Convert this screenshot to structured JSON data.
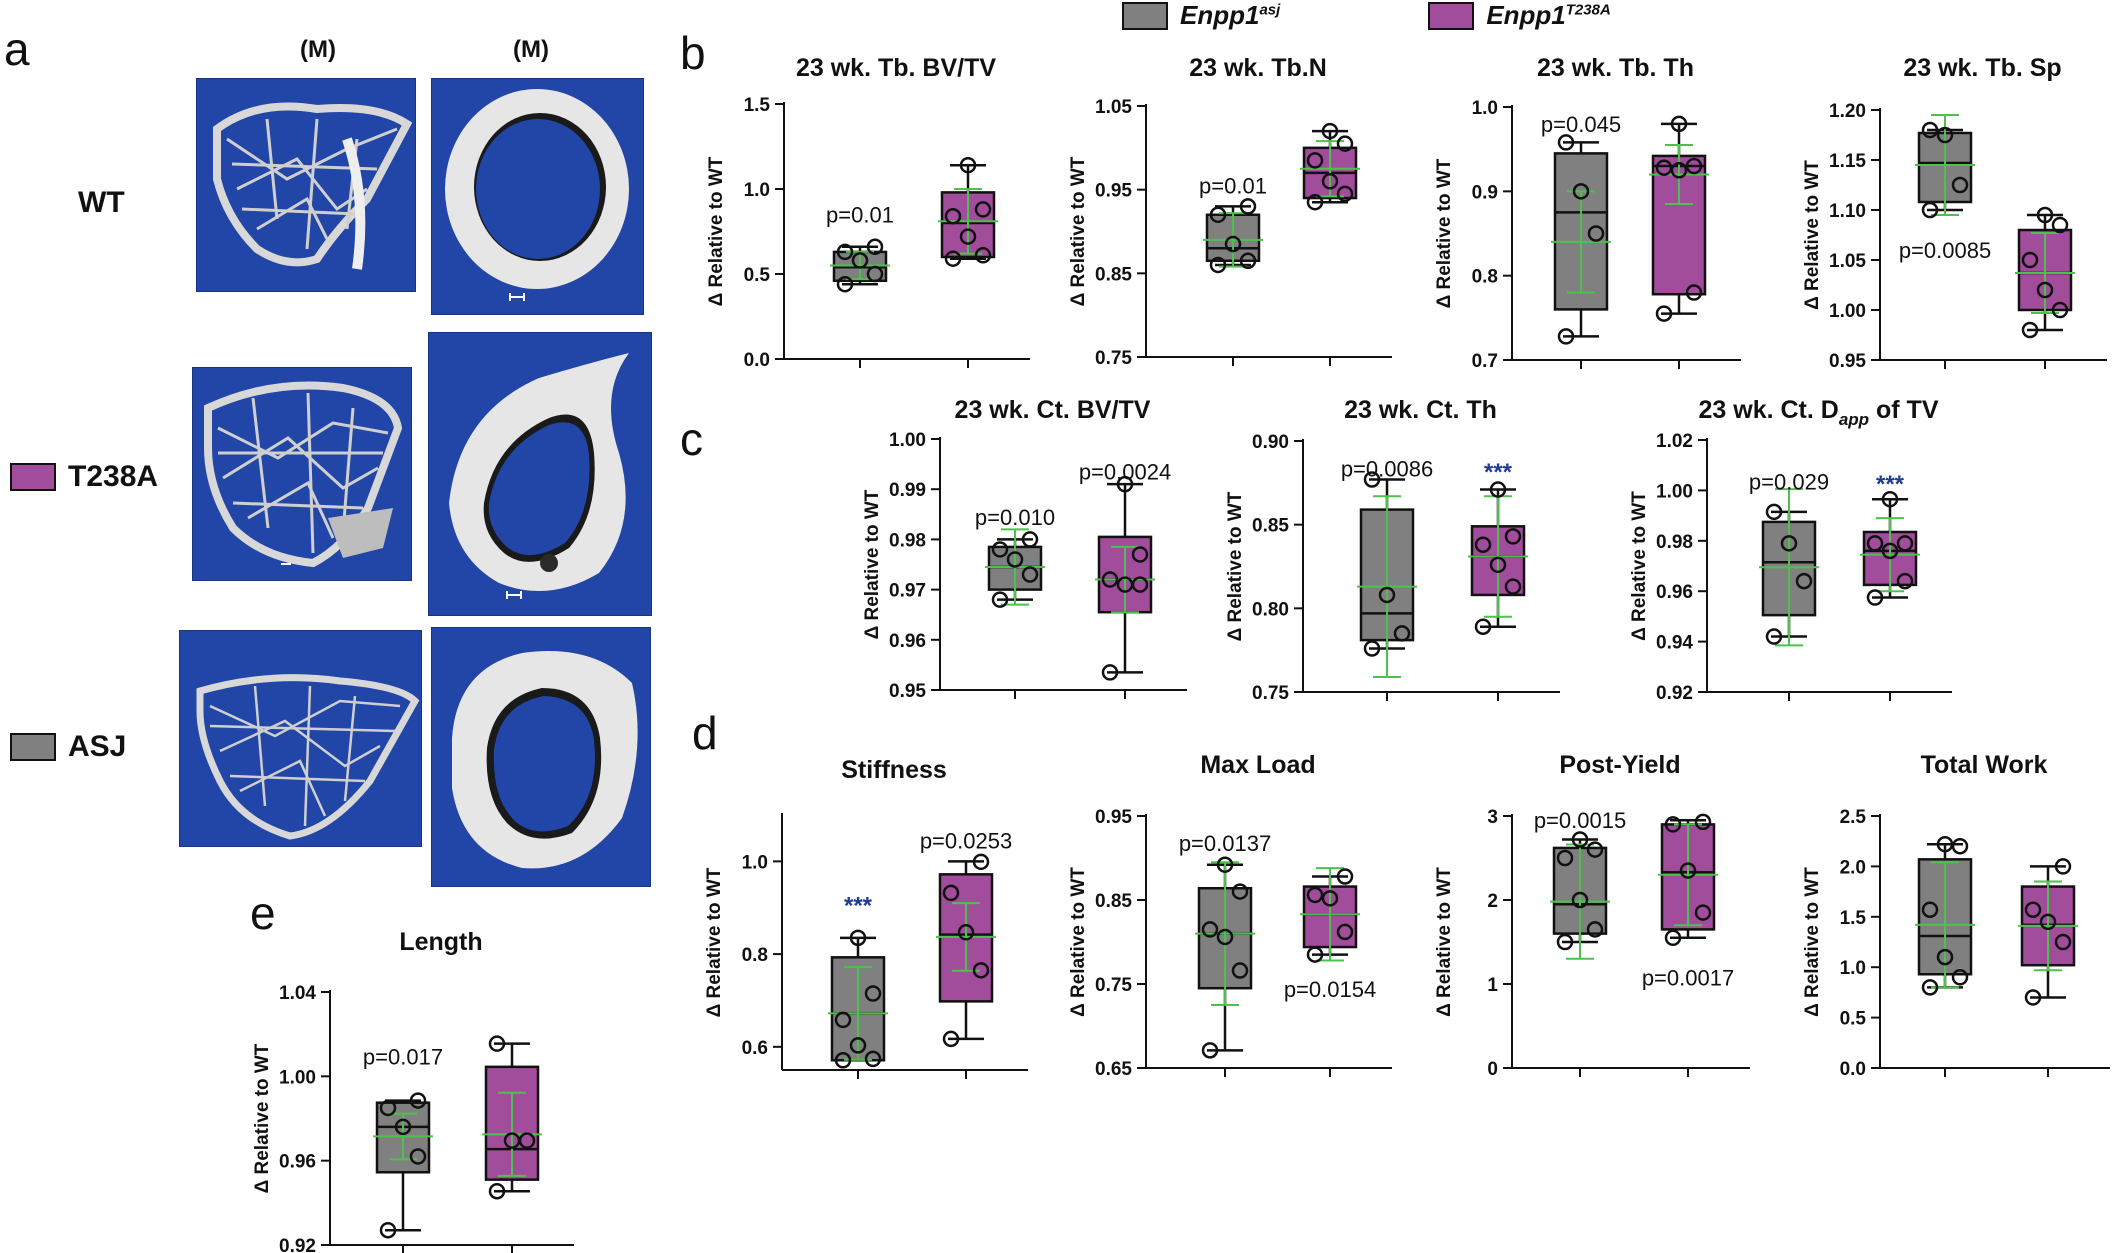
{
  "figure": {
    "panel_labels": [
      "a",
      "b",
      "c",
      "d",
      "e"
    ],
    "legend": [
      {
        "label": "Enpp1",
        "superscript": "asj",
        "color": "#808080"
      },
      {
        "label": "Enpp1",
        "superscript": "T238A",
        "color": "#a24c9c"
      }
    ],
    "panel_a": {
      "column_headers": [
        "(M)",
        "(M)"
      ],
      "rows": [
        {
          "label": "WT",
          "swatch": null
        },
        {
          "label": "T238A",
          "swatch": "#a24c9c"
        },
        {
          "label": "ASJ",
          "swatch": "#808080"
        }
      ],
      "background_color": "#2246a8"
    },
    "colors": {
      "asj": "#808080",
      "t238a": "#a24c9c",
      "mean_sd": "#4cc24c",
      "significance": "#1f3c8f"
    }
  },
  "chart_data": [
    {
      "id": "tb_bvtv",
      "type": "box",
      "title": "23 wk. Tb. BV/TV",
      "ylabel": "Δ Relative to WT",
      "ylim": [
        0,
        1.5
      ],
      "yticks": [
        "0.0",
        "0.5",
        "1.0",
        "1.5"
      ],
      "yticks_values": [
        0,
        0.5,
        1.0,
        1.5
      ],
      "series": [
        {
          "name": "Enpp1 asj",
          "q1": 0.46,
          "median": 0.54,
          "q3": 0.63,
          "min": 0.44,
          "max": 0.66,
          "mean": 0.55,
          "sd": 0.08,
          "points": [
            0.44,
            0.5,
            0.58,
            0.63,
            0.66
          ]
        },
        {
          "name": "Enpp1 T238A",
          "q1": 0.6,
          "median": 0.8,
          "q3": 0.98,
          "min": 0.59,
          "max": 1.14,
          "mean": 0.81,
          "sd": 0.19,
          "points": [
            0.59,
            0.61,
            0.72,
            0.84,
            0.88,
            1.14
          ]
        }
      ],
      "annotations": [
        {
          "text": "p=0.01",
          "x": 0,
          "y": 0.85
        }
      ]
    },
    {
      "id": "tb_n",
      "type": "box",
      "title": "23 wk. Tb.N",
      "ylabel": "Δ Relative to WT",
      "ylim": [
        0.75,
        1.05
      ],
      "yticks": [
        "0.75",
        "0.85",
        "0.95",
        "1.05"
      ],
      "yticks_values": [
        0.75,
        0.85,
        0.95,
        1.05
      ],
      "series": [
        {
          "name": "Enpp1 asj",
          "q1": 0.865,
          "median": 0.88,
          "q3": 0.92,
          "min": 0.86,
          "max": 0.93,
          "mean": 0.89,
          "sd": 0.032,
          "points": [
            0.86,
            0.865,
            0.885,
            0.92,
            0.93
          ]
        },
        {
          "name": "Enpp1 T238A",
          "q1": 0.94,
          "median": 0.97,
          "q3": 1.0,
          "min": 0.935,
          "max": 1.02,
          "mean": 0.975,
          "sd": 0.033,
          "points": [
            0.935,
            0.945,
            0.96,
            0.985,
            1.005,
            1.02
          ]
        }
      ],
      "annotations": [
        {
          "text": "p=0.01",
          "x": 0,
          "y": 0.955
        }
      ]
    },
    {
      "id": "tb_th",
      "type": "box",
      "title": "23 wk. Tb. Th",
      "ylabel": "Δ Relative to WT",
      "ylim": [
        0.7,
        1.0
      ],
      "yticks": [
        "0.7",
        "0.8",
        "0.9",
        "1.0"
      ],
      "yticks_values": [
        0.7,
        0.8,
        0.9,
        1.0
      ],
      "series": [
        {
          "name": "Enpp1 asj",
          "q1": 0.76,
          "median": 0.875,
          "q3": 0.945,
          "min": 0.728,
          "max": 0.958,
          "mean": 0.84,
          "sd": 0.06,
          "points": [
            0.728,
            0.85,
            0.9,
            0.958
          ]
        },
        {
          "name": "Enpp1 T238A",
          "q1": 0.778,
          "median": 0.93,
          "q3": 0.942,
          "min": 0.755,
          "max": 0.98,
          "mean": 0.92,
          "sd": 0.035,
          "points": [
            0.755,
            0.78,
            0.925,
            0.928,
            0.93,
            0.98
          ]
        }
      ],
      "annotations": [
        {
          "text": "p=0.045",
          "x": 0,
          "y": 0.98
        }
      ]
    },
    {
      "id": "tb_sp",
      "type": "box",
      "title": "23 wk. Tb. Sp",
      "ylabel": "Δ Relative to WT",
      "ylim": [
        0.95,
        1.2
      ],
      "yticks": [
        "0.95",
        "1.00",
        "1.05",
        "1.10",
        "1.15",
        "1.20"
      ],
      "yticks_values": [
        0.95,
        1.0,
        1.05,
        1.1,
        1.15,
        1.2
      ],
      "series": [
        {
          "name": "Enpp1 asj",
          "q1": 1.108,
          "median": 1.147,
          "q3": 1.177,
          "min": 1.1,
          "max": 1.18,
          "mean": 1.145,
          "sd": 0.05,
          "points": [
            1.1,
            1.125,
            1.175,
            1.18
          ]
        },
        {
          "name": "Enpp1 T238A",
          "q1": 1.0,
          "median": 1.037,
          "q3": 1.08,
          "min": 0.98,
          "max": 1.095,
          "mean": 1.037,
          "sd": 0.04,
          "points": [
            0.98,
            1.0,
            1.02,
            1.05,
            1.085,
            1.095
          ]
        }
      ],
      "annotations": [
        {
          "text": "p=0.0085",
          "x": 0,
          "y": 1.06
        }
      ]
    },
    {
      "id": "ct_bvtv",
      "type": "box",
      "title": "23 wk. Ct. BV/TV",
      "ylabel": "Δ Relative to WT",
      "ylim": [
        0.95,
        1.0
      ],
      "yticks": [
        "0.95",
        "0.96",
        "0.97",
        "0.98",
        "0.99",
        "1.00"
      ],
      "yticks_values": [
        0.95,
        0.96,
        0.97,
        0.98,
        0.99,
        1.0
      ],
      "series": [
        {
          "name": "Enpp1 asj",
          "q1": 0.97,
          "median": 0.9745,
          "q3": 0.9785,
          "min": 0.968,
          "max": 0.98,
          "mean": 0.9745,
          "sd": 0.0075,
          "points": [
            0.968,
            0.973,
            0.976,
            0.978,
            0.98
          ]
        },
        {
          "name": "Enpp1 T238A",
          "q1": 0.9655,
          "median": 0.972,
          "q3": 0.9805,
          "min": 0.9535,
          "max": 0.991,
          "mean": 0.972,
          "sd": 0.0065,
          "points": [
            0.9535,
            0.971,
            0.971,
            0.972,
            0.977,
            0.991
          ]
        }
      ],
      "annotations": [
        {
          "text": "p=0.010",
          "x": 0,
          "y": 0.9845
        },
        {
          "text": "p=0.0024",
          "x": 1,
          "y": 0.9935
        }
      ]
    },
    {
      "id": "ct_th",
      "type": "box",
      "title": "23 wk. Ct. Th",
      "ylabel": "Δ Relative to WT",
      "ylim": [
        0.75,
        0.9
      ],
      "yticks": [
        "0.75",
        "0.80",
        "0.85",
        "0.90"
      ],
      "yticks_values": [
        0.75,
        0.8,
        0.85,
        0.9
      ],
      "series": [
        {
          "name": "Enpp1 asj",
          "q1": 0.781,
          "median": 0.797,
          "q3": 0.859,
          "min": 0.776,
          "max": 0.877,
          "mean": 0.813,
          "sd": 0.054,
          "points": [
            0.776,
            0.785,
            0.808,
            0.877
          ]
        },
        {
          "name": "Enpp1 T238A",
          "q1": 0.808,
          "median": 0.831,
          "q3": 0.849,
          "min": 0.789,
          "max": 0.871,
          "mean": 0.831,
          "sd": 0.036,
          "points": [
            0.789,
            0.813,
            0.826,
            0.838,
            0.843,
            0.871
          ]
        }
      ],
      "annotations": [
        {
          "text": "p=0.0086",
          "x": 0,
          "y": 0.8835
        },
        {
          "text": "***",
          "x": 1,
          "y": 0.8815,
          "color": "#1f3c8f"
        }
      ]
    },
    {
      "id": "ct_dapp",
      "type": "box",
      "title": "23 wk. Ct. D",
      "title_sub": "app",
      "title_suffix": " of TV",
      "ylabel": "Δ Relative to WT",
      "ylim": [
        0.92,
        1.02
      ],
      "yticks": [
        "0.92",
        "0.94",
        "0.96",
        "0.98",
        "1.00",
        "1.02"
      ],
      "yticks_values": [
        0.92,
        0.94,
        0.96,
        0.98,
        1.0,
        1.02
      ],
      "series": [
        {
          "name": "Enpp1 asj",
          "q1": 0.9505,
          "median": 0.9715,
          "q3": 0.9875,
          "min": 0.942,
          "max": 0.9915,
          "mean": 0.9695,
          "sd": 0.031,
          "points": [
            0.942,
            0.964,
            0.979,
            0.9915
          ]
        },
        {
          "name": "Enpp1 T238A",
          "q1": 0.9625,
          "median": 0.976,
          "q3": 0.9835,
          "min": 0.9575,
          "max": 0.9965,
          "mean": 0.9745,
          "sd": 0.0145,
          "points": [
            0.9575,
            0.964,
            0.976,
            0.979,
            0.979,
            0.9965
          ]
        }
      ],
      "annotations": [
        {
          "text": "p=0.029",
          "x": 0,
          "y": 1.0035
        },
        {
          "text": "***",
          "x": 1,
          "y": 1.0025,
          "color": "#1f3c8f"
        }
      ]
    },
    {
      "id": "stiffness",
      "type": "box",
      "title": "Stiffness",
      "ylabel": "Δ Relative to WT",
      "ylim": [
        0.55,
        1.1
      ],
      "yticks": [
        "0.6",
        "0.8",
        "1.0"
      ],
      "yticks_values": [
        0.6,
        0.8,
        1.0
      ],
      "series": [
        {
          "name": "Enpp1 asj",
          "q1": 0.571,
          "median": 0.672,
          "q3": 0.793,
          "min": 0.571,
          "max": 0.835,
          "mean": 0.672,
          "sd": 0.1,
          "points": [
            0.571,
            0.574,
            0.603,
            0.658,
            0.715,
            0.835
          ]
        },
        {
          "name": "Enpp1 T238A",
          "q1": 0.698,
          "median": 0.842,
          "q3": 0.972,
          "min": 0.617,
          "max": 1.0,
          "mean": 0.837,
          "sd": 0.073,
          "points": [
            0.617,
            0.765,
            0.847,
            0.932,
            0.999
          ]
        }
      ],
      "annotations": [
        {
          "text": "***",
          "x": 0,
          "y": 0.905,
          "color": "#1f3c8f"
        },
        {
          "text": "p=0.0253",
          "x": 1,
          "y": 1.045
        }
      ]
    },
    {
      "id": "max_load",
      "type": "box",
      "title": "Max Load",
      "ylabel": "Δ Relative to WT",
      "ylim": [
        0.65,
        0.95
      ],
      "yticks": [
        "0.65",
        "0.75",
        "0.85",
        "0.95"
      ],
      "yticks_values": [
        0.65,
        0.75,
        0.85,
        0.95
      ],
      "series": [
        {
          "name": "Enpp1 asj",
          "q1": 0.745,
          "median": 0.81,
          "q3": 0.864,
          "min": 0.671,
          "max": 0.892,
          "mean": 0.81,
          "sd": 0.085,
          "points": [
            0.671,
            0.766,
            0.806,
            0.815,
            0.86,
            0.892
          ]
        },
        {
          "name": "Enpp1 T238A",
          "q1": 0.794,
          "median": 0.833,
          "q3": 0.866,
          "min": 0.785,
          "max": 0.878,
          "mean": 0.833,
          "sd": 0.055,
          "points": [
            0.785,
            0.812,
            0.852,
            0.856,
            0.878
          ]
        }
      ],
      "annotations": [
        {
          "text": "p=0.0137",
          "x": 0,
          "y": 0.918
        },
        {
          "text": "p=0.0154",
          "x": 1,
          "y": 0.744
        }
      ]
    },
    {
      "id": "post_yield",
      "type": "box",
      "title": "Post-Yield",
      "ylabel": "Δ Relative to WT",
      "ylim": [
        0,
        3
      ],
      "yticks": [
        "0",
        "1",
        "2",
        "3"
      ],
      "yticks_values": [
        0,
        1,
        2,
        3
      ],
      "series": [
        {
          "name": "Enpp1 asj",
          "q1": 1.6,
          "median": 1.95,
          "q3": 2.62,
          "min": 1.5,
          "max": 2.72,
          "mean": 1.98,
          "sd": 0.68,
          "points": [
            1.5,
            1.65,
            2.0,
            2.5,
            2.6,
            2.72
          ]
        },
        {
          "name": "Enpp1 T238A",
          "q1": 1.65,
          "median": 2.33,
          "q3": 2.9,
          "min": 1.55,
          "max": 2.95,
          "mean": 2.3,
          "sd": 0.6,
          "points": [
            1.55,
            1.85,
            2.35,
            2.9,
            2.93
          ]
        }
      ],
      "annotations": [
        {
          "text": "p=0.0015",
          "x": 0,
          "y": 2.95
        },
        {
          "text": "p=0.0017",
          "x": 1,
          "y": 1.08
        }
      ]
    },
    {
      "id": "total_work",
      "type": "box",
      "title": "Total Work",
      "ylabel": "Δ Relative to WT",
      "ylim": [
        0,
        2.5
      ],
      "yticks": [
        "0.0",
        "0.5",
        "1.0",
        "1.5",
        "2.0",
        "2.5"
      ],
      "yticks_values": [
        0,
        0.5,
        1.0,
        1.5,
        2.0,
        2.5
      ],
      "series": [
        {
          "name": "Enpp1 asj",
          "q1": 0.93,
          "median": 1.31,
          "q3": 2.07,
          "min": 0.8,
          "max": 2.22,
          "mean": 1.42,
          "sd": 0.62,
          "points": [
            0.8,
            0.9,
            1.1,
            1.57,
            2.2,
            2.22
          ]
        },
        {
          "name": "Enpp1 T238A",
          "q1": 1.02,
          "median": 1.42,
          "q3": 1.8,
          "min": 0.7,
          "max": 2.0,
          "mean": 1.41,
          "sd": 0.44,
          "points": [
            0.7,
            1.25,
            1.45,
            1.57,
            2.0
          ]
        }
      ],
      "annotations": []
    },
    {
      "id": "length",
      "type": "box",
      "title": "Length",
      "ylabel": "Δ Relative to WT",
      "ylim": [
        0.92,
        1.04
      ],
      "yticks": [
        "0.92",
        "0.96",
        "1.00",
        "1.04"
      ],
      "yticks_values": [
        0.92,
        0.96,
        1.0,
        1.04
      ],
      "series": [
        {
          "name": "Enpp1 asj",
          "q1": 0.9545,
          "median": 0.976,
          "q3": 0.9875,
          "min": 0.927,
          "max": 0.9885,
          "mean": 0.9715,
          "sd": 0.0108,
          "points": [
            0.927,
            0.962,
            0.976,
            0.985,
            0.9885
          ]
        },
        {
          "name": "Enpp1 T238A",
          "q1": 0.951,
          "median": 0.9655,
          "q3": 1.0045,
          "min": 0.9455,
          "max": 1.0155,
          "mean": 0.9725,
          "sd": 0.0197,
          "points": [
            0.9455,
            0.9695,
            0.9695,
            1.0155
          ]
        }
      ],
      "annotations": [
        {
          "text": "p=0.017",
          "x": 0,
          "y": 1.0095
        }
      ]
    }
  ]
}
